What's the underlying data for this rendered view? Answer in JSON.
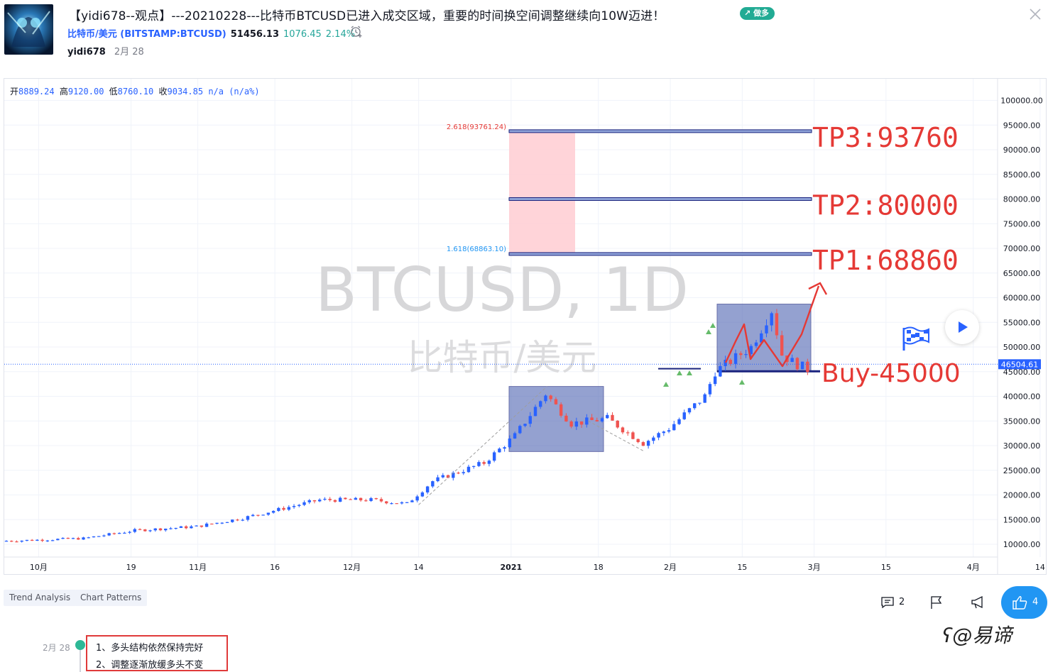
{
  "header": {
    "title": "【yidi678--观点】---20210228---比特币BTCUSD已进入成交区域，重要的时间换空间调整继续向10W迈进！",
    "direction_badge": "做多",
    "symbol_name": "比特币/美元",
    "symbol_code": "(BITSTAMP:BTCUSD)",
    "price": "51456.13",
    "change": "1076.45",
    "change_pct": "2.14%",
    "author": "yidi678",
    "date": "2月 28"
  },
  "chart": {
    "ohlc": {
      "open_label": "开",
      "open": "8889.24",
      "high_label": "高",
      "high": "9120.00",
      "low_label": "低",
      "low": "8760.10",
      "close_label": "收",
      "close": "9034.85",
      "change": "n/a (n/a%)"
    },
    "watermark_symbol": "BTCUSD, 1D",
    "watermark_name": "比特币/美元",
    "current_price_label": "46504.61",
    "y_axis_ticks": [
      "100000.00",
      "95000.00",
      "90000.00",
      "85000.00",
      "80000.00",
      "75000.00",
      "70000.00",
      "65000.00",
      "60000.00",
      "55000.00",
      "50000.00",
      "45000.00",
      "40000.00",
      "35000.00",
      "30000.00",
      "25000.00",
      "20000.00",
      "15000.00",
      "10000.00"
    ],
    "x_axis_ticks": [
      "10月",
      "19",
      "11月",
      "16",
      "12月",
      "14",
      "2021",
      "18",
      "2月",
      "15",
      "3月",
      "15",
      "4月",
      "14"
    ],
    "fib_upper_label": "2.618(93761.24)",
    "fib_lower_label": "1.618(68863.10)",
    "annotations": {
      "tp3": "TP3:93760",
      "tp2": "TP2:80000",
      "tp1": "TP1:68860",
      "buy": "Buy-45000"
    },
    "colors": {
      "up": "#2962ff",
      "down": "#ef5350",
      "annotation": "#e53935",
      "box_fill": "#5b6fb8",
      "fib_zone": "#ffcdd2"
    }
  },
  "chart_data": {
    "type": "candlestick",
    "y_axis_range": [
      7000,
      103000
    ],
    "levels": [
      {
        "label": "TP3:93760",
        "value": 93760
      },
      {
        "label": "TP2:80000",
        "value": 80000
      },
      {
        "label": "TP1:68860",
        "value": 68860
      },
      {
        "label": "Buy-45000",
        "value": 45000
      }
    ],
    "fib_levels": [
      {
        "ratio": "2.618",
        "value": 93761.24
      },
      {
        "ratio": "1.618",
        "value": 68863.1
      }
    ],
    "current_price": 46504.61,
    "path_points": [
      {
        "month": 9,
        "day": 26,
        "price": 10700
      },
      {
        "month": 10,
        "day": 10,
        "price": 11200
      },
      {
        "month": 10,
        "day": 20,
        "price": 12800
      },
      {
        "month": 11,
        "day": 1,
        "price": 13600
      },
      {
        "month": 11,
        "day": 10,
        "price": 15300
      },
      {
        "month": 11,
        "day": 20,
        "price": 17800
      },
      {
        "month": 11,
        "day": 25,
        "price": 19000
      },
      {
        "month": 12,
        "day": 5,
        "price": 19000
      },
      {
        "month": 12,
        "day": 12,
        "price": 18200
      },
      {
        "month": 12,
        "day": 17,
        "price": 22800
      },
      {
        "month": 12,
        "day": 27,
        "price": 26500
      },
      {
        "month": 1,
        "day": 2,
        "price": 32000
      },
      {
        "month": 1,
        "day": 8,
        "price": 40500
      },
      {
        "month": 1,
        "day": 13,
        "price": 34500
      },
      {
        "month": 1,
        "day": 20,
        "price": 35500
      },
      {
        "month": 1,
        "day": 27,
        "price": 30500
      },
      {
        "month": 2,
        "day": 1,
        "price": 33500
      },
      {
        "month": 2,
        "day": 8,
        "price": 40000
      },
      {
        "month": 2,
        "day": 10,
        "price": 45000
      },
      {
        "month": 2,
        "day": 17,
        "price": 50000
      },
      {
        "month": 2,
        "day": 21,
        "price": 57500
      },
      {
        "month": 2,
        "day": 23,
        "price": 48500
      },
      {
        "month": 2,
        "day": 25,
        "price": 47000
      },
      {
        "month": 2,
        "day": 28,
        "price": 45500
      }
    ]
  },
  "tags": [
    "Trend Analysis",
    "Chart Patterns"
  ],
  "actions": {
    "comments": "2",
    "likes": "4"
  },
  "timeline": {
    "date": "2月 28",
    "notes": [
      "1、多头结构依然保持完好",
      "2、调整逐渐放缓多头不变"
    ]
  },
  "watermark": "@易谛"
}
